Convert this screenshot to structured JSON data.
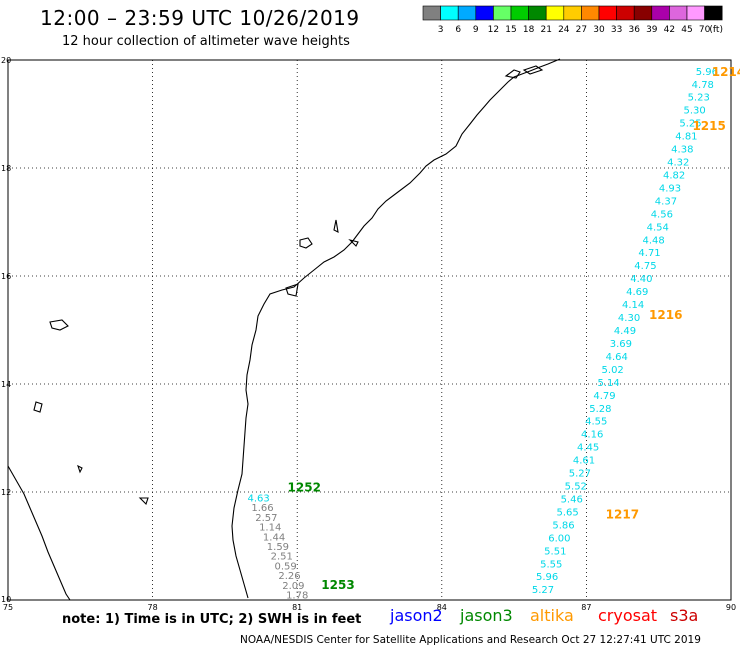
{
  "header": {
    "title": "12:00 – 23:59 UTC 10/26/2019",
    "subtitle": "12 hour collection of altimeter wave heights"
  },
  "legend": {
    "unit_label": "(ft)",
    "bins": [
      {
        "label": "3",
        "color": "#808080"
      },
      {
        "label": "6",
        "color": "#00ffff"
      },
      {
        "label": "9",
        "color": "#00aaff"
      },
      {
        "label": "12",
        "color": "#0000ff"
      },
      {
        "label": "15",
        "color": "#66ff66"
      },
      {
        "label": "18",
        "color": "#00cc00"
      },
      {
        "label": "21",
        "color": "#008800"
      },
      {
        "label": "24",
        "color": "#ffff00"
      },
      {
        "label": "27",
        "color": "#ffcc00"
      },
      {
        "label": "30",
        "color": "#ff8800"
      },
      {
        "label": "33",
        "color": "#ff0000"
      },
      {
        "label": "36",
        "color": "#cc0000"
      },
      {
        "label": "39",
        "color": "#880000"
      },
      {
        "label": "42",
        "color": "#aa00aa"
      },
      {
        "label": "45",
        "color": "#dd66dd"
      },
      {
        "label": "70",
        "color": "#ff99ff"
      },
      {
        "label": "",
        "color": "#000000"
      }
    ]
  },
  "map": {
    "lon_range": [
      75,
      90
    ],
    "lat_range": [
      10,
      20
    ],
    "lon_ticks": [
      "75",
      "78",
      "81",
      "84",
      "87",
      "90"
    ],
    "lat_ticks": [
      "10",
      "12",
      "14",
      "16",
      "18",
      "20"
    ],
    "coast_color": "#000000",
    "grid": true
  },
  "tracks": [
    {
      "id": "east-track",
      "lon_start": 89.5,
      "lat_start": 19.8,
      "lon_end": 86.1,
      "lat_end": 10.2,
      "color": "#00d8e8",
      "values": [
        "5.96",
        "4.78",
        "5.23",
        "5.30",
        "5.25",
        "4.81",
        "4.38",
        "4.32",
        "4.82",
        "4.93",
        "4.37",
        "4.56",
        "4.54",
        "4.48",
        "4.71",
        "4.75",
        "4.40",
        "4.69",
        "4.14",
        "4.30",
        "4.49",
        "3.69",
        "4.64",
        "5.02",
        "5.14",
        "4.79",
        "5.28",
        "4.55",
        "4.16",
        "4.45",
        "4.61",
        "5.27",
        "5.52",
        "5.46",
        "5.65",
        "5.86",
        "6.00",
        "5.51",
        "5.55",
        "5.96",
        "5.27"
      ]
    },
    {
      "id": "west-track",
      "lon_start": 80.2,
      "lat_start": 11.9,
      "lon_end": 81.0,
      "lat_end": 10.1,
      "color": "#808080",
      "first_color": "#00d8e8",
      "values": [
        "4.63",
        "1.66",
        "2.57",
        "1.14",
        "1.44",
        "1.59",
        "2.51",
        "0.59",
        "2.26",
        "2.09",
        "1.78"
      ]
    }
  ],
  "time_labels": [
    {
      "text": "1214",
      "lon": 89.6,
      "lat": 19.8,
      "color": "#ff9900"
    },
    {
      "text": "1215",
      "lon": 89.2,
      "lat": 18.8,
      "color": "#ff9900"
    },
    {
      "text": "1216",
      "lon": 88.3,
      "lat": 15.3,
      "color": "#ff9900"
    },
    {
      "text": "1217",
      "lon": 87.4,
      "lat": 11.6,
      "color": "#ff9900"
    },
    {
      "text": "1252",
      "lon": 80.8,
      "lat": 12.1,
      "color": "#008800"
    },
    {
      "text": "1253",
      "lon": 81.5,
      "lat": 10.3,
      "color": "#008800"
    }
  ],
  "footer": {
    "note": "note: 1) Time is in UTC; 2) SWH is in feet",
    "satellites": [
      {
        "name": "jason2",
        "color": "#0000ff"
      },
      {
        "name": "jason3",
        "color": "#008800"
      },
      {
        "name": "altika",
        "color": "#ff9900"
      },
      {
        "name": "cryosat",
        "color": "#ff0000"
      },
      {
        "name": "s3a",
        "color": "#cc0000"
      }
    ],
    "credit": "NOAA/NESDIS Center for Satellite Applications and Research    Oct 27 12:27:41 UTC 2019"
  }
}
